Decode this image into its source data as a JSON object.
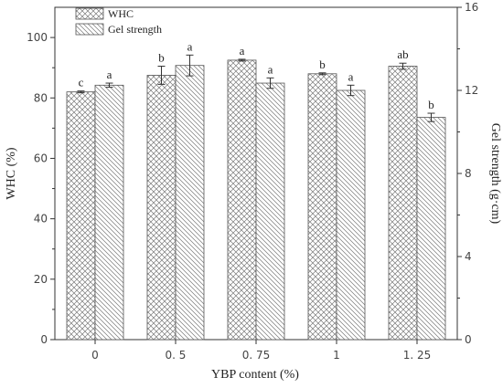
{
  "chart_data": {
    "type": "bar",
    "categories": [
      "0",
      "0. 5",
      "0. 75",
      "1",
      "1. 25"
    ],
    "xlabel": "YBP content (%)",
    "ylabel": "WHC (%)",
    "y2label": "Gel strength (g·cm)",
    "ylim": [
      0,
      110
    ],
    "y2lim": [
      0,
      16
    ],
    "yticks": [
      "0",
      "20",
      "40",
      "60",
      "80",
      "100"
    ],
    "y2ticks": [
      "0",
      "4",
      "8",
      "12",
      "16"
    ],
    "legend_position": "top-left",
    "series": [
      {
        "name": "WHC",
        "axis": "left",
        "pattern": "crosshatch",
        "values": [
          82,
          87.5,
          92.5,
          88,
          90.5
        ],
        "errors": [
          0.3,
          3,
          0.3,
          0.3,
          1
        ],
        "labels": [
          "c",
          "b",
          "a",
          "b",
          "ab"
        ]
      },
      {
        "name": "Gel strength",
        "axis": "right",
        "pattern": "diagonal",
        "values": [
          12.25,
          13.2,
          12.35,
          12.0,
          10.7
        ],
        "errors": [
          0.1,
          0.5,
          0.25,
          0.25,
          0.2
        ],
        "labels": [
          "a",
          "a",
          "a",
          "a",
          "b"
        ]
      }
    ]
  }
}
